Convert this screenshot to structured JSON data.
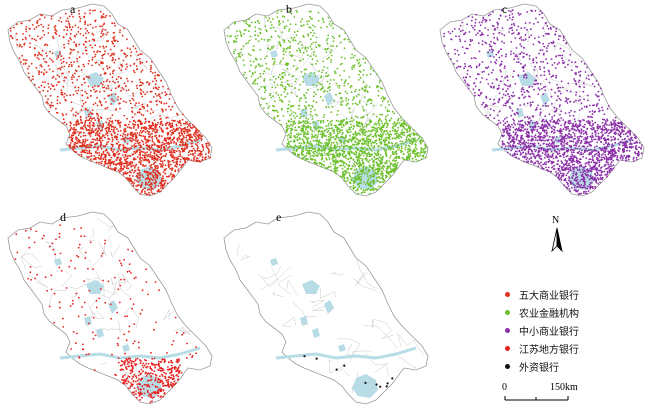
{
  "panels": [
    {
      "letter": "a",
      "color": "#e03020",
      "density": 1.0,
      "kind": "five_banks"
    },
    {
      "letter": "b",
      "color": "#6cc02a",
      "density": 1.0,
      "kind": "rural"
    },
    {
      "letter": "c",
      "color": "#8b2fa8",
      "density": 1.0,
      "kind": "small_medium"
    },
    {
      "letter": "d",
      "color": "#e82020",
      "density": 0.35,
      "kind": "jiangsu_local"
    },
    {
      "letter": "e",
      "color": "#111111",
      "density": 0.01,
      "kind": "foreign"
    }
  ],
  "legend": {
    "items": [
      {
        "label": "五大商业银行",
        "color": "#e03020"
      },
      {
        "label": "农业金融机构",
        "color": "#6cc02a"
      },
      {
        "label": "中小商业银行",
        "color": "#8b2fa8"
      },
      {
        "label": "江苏地方银行",
        "color": "#e82020"
      },
      {
        "label": "外资银行",
        "color": "#111111"
      }
    ]
  },
  "north_arrow": {
    "letter": "N"
  },
  "scale": {
    "start": "0",
    "end": "150km"
  },
  "colors": {
    "water": "#b8dce6",
    "boundary": "#9a9a9a",
    "county_line": "#c9c9c9"
  }
}
